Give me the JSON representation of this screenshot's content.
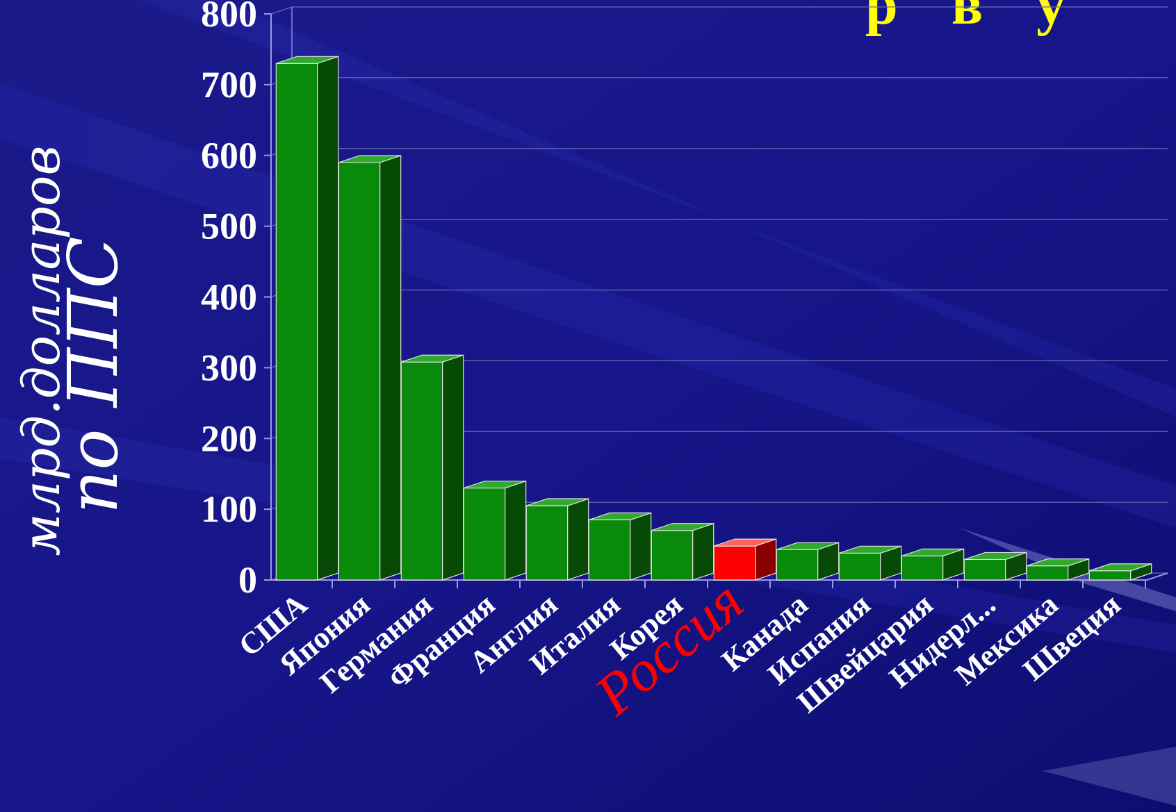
{
  "page": {
    "corner_text": "р в у",
    "colors": {
      "background": "#12127f",
      "bar": "#0a8a0a",
      "highlight": "#ff0000",
      "text": "#ffffff",
      "corner_text": "#ffff00"
    }
  },
  "chart_data": {
    "type": "bar",
    "title": "",
    "xlabel": "",
    "ylabel_line1": "млрд.долларов",
    "ylabel_line2": "по ППС",
    "ylim": [
      0,
      800
    ],
    "yticks": [
      0,
      100,
      200,
      300,
      400,
      500,
      600,
      700,
      800
    ],
    "grid": true,
    "style": "3d-columns",
    "categories": [
      "США",
      "Япония",
      "Германия",
      "Франция",
      "Англия",
      "Италия",
      "Корея",
      "Россия",
      "Канада",
      "Испания",
      "Швейцария",
      "Нидерл...",
      "Мексика",
      "Швеция"
    ],
    "values": [
      730,
      590,
      308,
      130,
      105,
      85,
      70,
      48,
      43,
      38,
      34,
      29,
      20,
      13
    ],
    "highlight_category": "Россия"
  }
}
